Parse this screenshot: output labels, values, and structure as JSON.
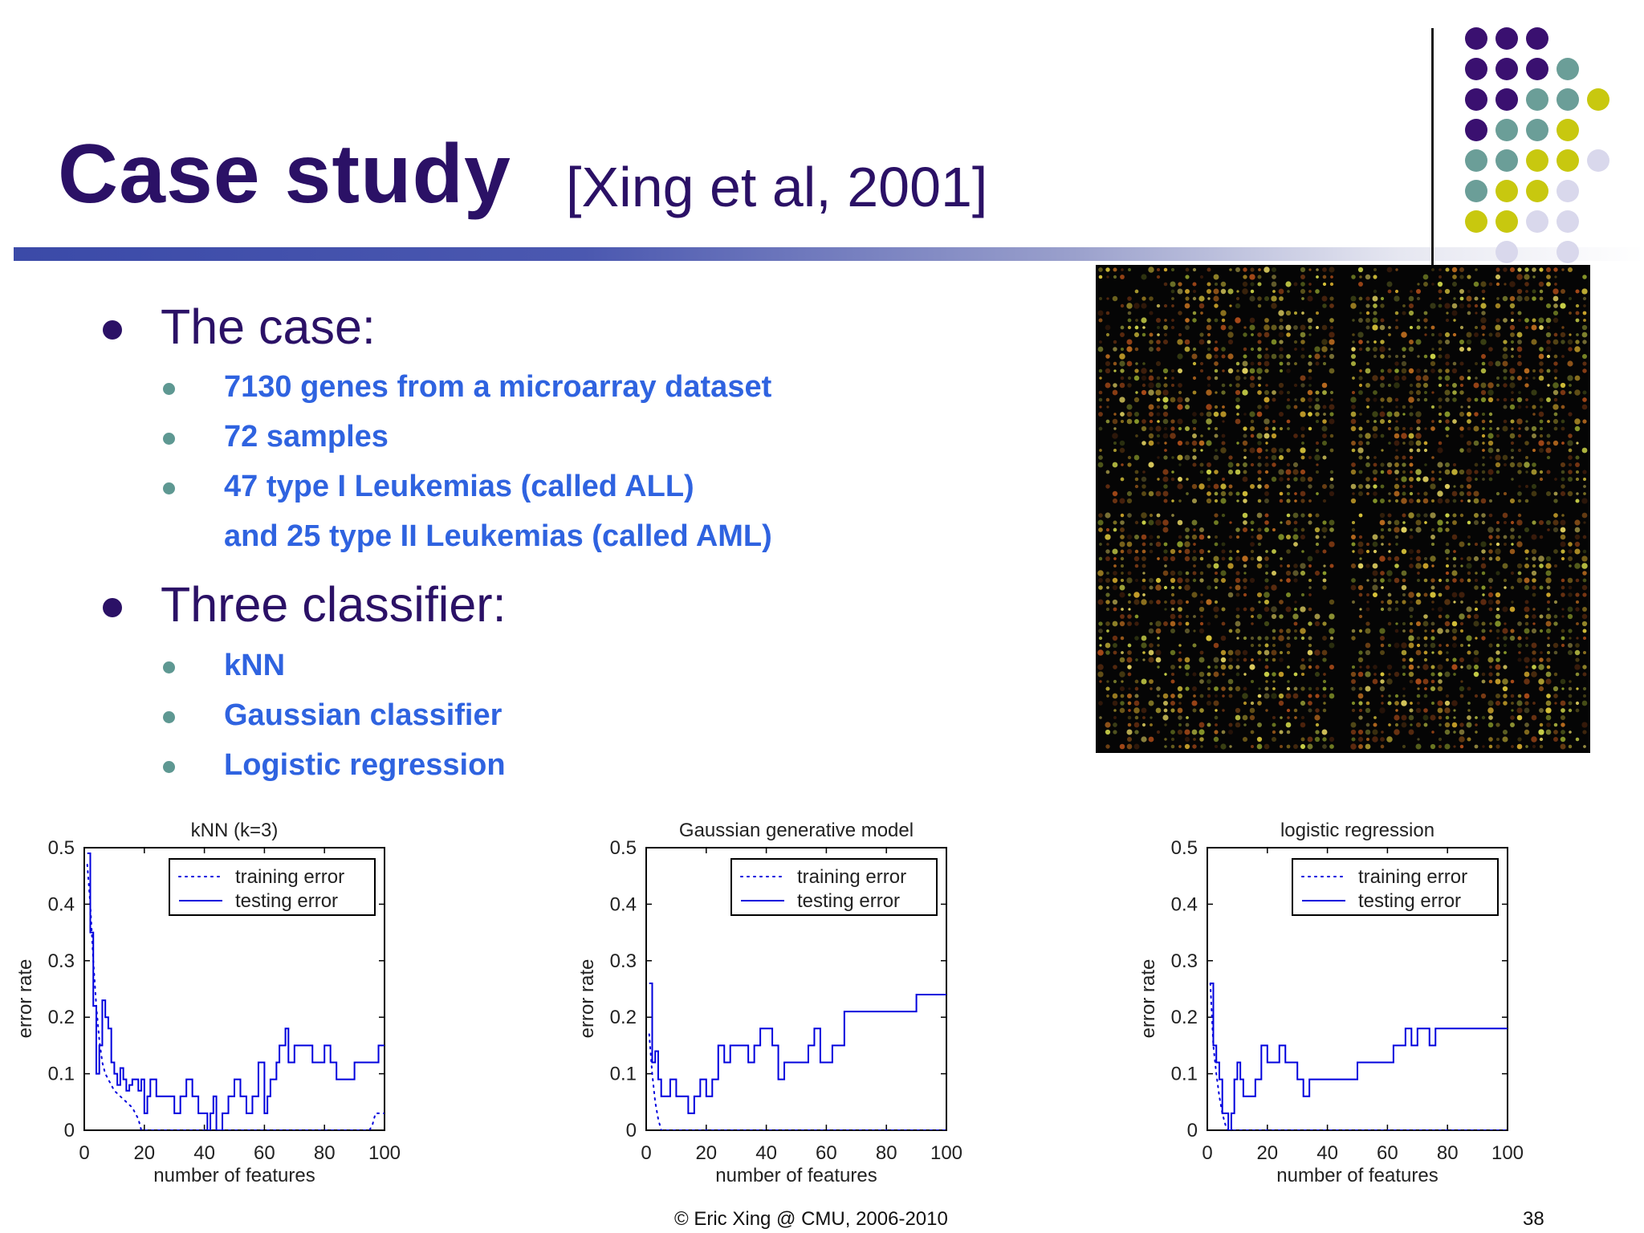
{
  "slide": {
    "title": "Case study",
    "citation": "[Xing et al, 2001]",
    "footer": "© Eric Xing @ CMU, 2006-2010",
    "page_number": "38",
    "colors": {
      "title": "#2b1166",
      "bullet_text": "#2f63e0",
      "purple": "#3a1070",
      "teal": "#6b9e98",
      "olive": "#c8c80f",
      "lavender": "#d9d8ec"
    }
  },
  "bullets": [
    {
      "text": "The case:",
      "children": [
        "7130 genes from a microarray dataset",
        "72 samples",
        "47 type I Leukemias (called ALL)",
        "and 25 type II Leukemias (called AML)"
      ]
    },
    {
      "text": "Three classifier:",
      "children": [
        "kNN",
        "Gaussian classifier",
        "Logistic regression"
      ]
    }
  ],
  "chart_data": [
    {
      "type": "line",
      "title": "kNN (k=3)",
      "xlabel": "number of features",
      "ylabel": "error rate",
      "xlim": [
        0,
        100
      ],
      "ylim": [
        0,
        0.5
      ],
      "xticks": [
        "0",
        "20",
        "40",
        "60",
        "80",
        "100"
      ],
      "yticks": [
        "0",
        "0.1",
        "0.2",
        "0.3",
        "0.4",
        "0.5"
      ],
      "legend_position": "top-right",
      "series": [
        {
          "name": "training error",
          "style": "dotted",
          "x": [
            1,
            2,
            3,
            4,
            5,
            6,
            7,
            8,
            9,
            10,
            12,
            14,
            16,
            18,
            19,
            20,
            30,
            40,
            50,
            60,
            70,
            80,
            90,
            95,
            96,
            97,
            100
          ],
          "y": [
            0.47,
            0.4,
            0.3,
            0.22,
            0.16,
            0.12,
            0.1,
            0.09,
            0.08,
            0.07,
            0.06,
            0.05,
            0.04,
            0.02,
            0.0,
            0.0,
            0.0,
            0.0,
            0.0,
            0.0,
            0.0,
            0.0,
            0.0,
            0.0,
            0.01,
            0.03,
            0.03
          ]
        },
        {
          "name": "testing error",
          "style": "solid",
          "x": [
            1,
            2,
            3,
            4,
            5,
            6,
            7,
            8,
            9,
            10,
            11,
            12,
            13,
            14,
            15,
            16,
            17,
            18,
            19,
            20,
            21,
            22,
            24,
            26,
            28,
            30,
            32,
            34,
            36,
            38,
            40,
            41,
            42,
            43,
            44,
            46,
            48,
            50,
            52,
            54,
            56,
            58,
            60,
            61,
            62,
            64,
            65,
            66,
            67,
            68,
            70,
            72,
            74,
            76,
            78,
            80,
            82,
            84,
            86,
            88,
            90,
            92,
            94,
            96,
            98,
            100
          ],
          "y": [
            0.49,
            0.35,
            0.22,
            0.1,
            0.15,
            0.23,
            0.2,
            0.18,
            0.12,
            0.1,
            0.08,
            0.11,
            0.09,
            0.07,
            0.08,
            0.09,
            0.09,
            0.07,
            0.09,
            0.03,
            0.06,
            0.09,
            0.06,
            0.06,
            0.06,
            0.03,
            0.06,
            0.09,
            0.06,
            0.03,
            0.03,
            0.0,
            0.03,
            0.06,
            0.0,
            0.03,
            0.06,
            0.09,
            0.06,
            0.03,
            0.06,
            0.12,
            0.03,
            0.06,
            0.09,
            0.12,
            0.15,
            0.15,
            0.18,
            0.12,
            0.15,
            0.15,
            0.15,
            0.12,
            0.12,
            0.15,
            0.12,
            0.09,
            0.09,
            0.09,
            0.12,
            0.12,
            0.12,
            0.12,
            0.15,
            0.15
          ]
        }
      ]
    },
    {
      "type": "line",
      "title": "Gaussian generative model",
      "xlabel": "number of features",
      "ylabel": "error rate",
      "xlim": [
        0,
        100
      ],
      "ylim": [
        0,
        0.5
      ],
      "xticks": [
        "0",
        "20",
        "40",
        "60",
        "80",
        "100"
      ],
      "yticks": [
        "0",
        "0.1",
        "0.2",
        "0.3",
        "0.4",
        "0.5"
      ],
      "legend_position": "top-right",
      "series": [
        {
          "name": "training error",
          "style": "dotted",
          "x": [
            1,
            2,
            3,
            4,
            5,
            6,
            10,
            20,
            40,
            60,
            80,
            100
          ],
          "y": [
            0.17,
            0.1,
            0.05,
            0.02,
            0.0,
            0.0,
            0.0,
            0.0,
            0.0,
            0.0,
            0.0,
            0.0
          ]
        },
        {
          "name": "testing error",
          "style": "solid",
          "x": [
            1,
            2,
            3,
            4,
            5,
            6,
            8,
            10,
            12,
            14,
            16,
            18,
            20,
            22,
            24,
            26,
            28,
            30,
            32,
            34,
            36,
            38,
            40,
            42,
            44,
            46,
            48,
            50,
            52,
            54,
            56,
            58,
            60,
            62,
            66,
            70,
            80,
            90,
            100
          ],
          "y": [
            0.26,
            0.12,
            0.14,
            0.09,
            0.06,
            0.06,
            0.09,
            0.06,
            0.06,
            0.03,
            0.06,
            0.09,
            0.06,
            0.09,
            0.15,
            0.12,
            0.15,
            0.15,
            0.15,
            0.12,
            0.15,
            0.18,
            0.18,
            0.15,
            0.09,
            0.12,
            0.12,
            0.12,
            0.12,
            0.15,
            0.18,
            0.12,
            0.12,
            0.15,
            0.21,
            0.21,
            0.21,
            0.24,
            0.24
          ]
        }
      ]
    },
    {
      "type": "line",
      "title": "logistic regression",
      "xlabel": "number of features",
      "ylabel": "error rate",
      "xlim": [
        0,
        100
      ],
      "ylim": [
        0,
        0.5
      ],
      "xticks": [
        "0",
        "20",
        "40",
        "60",
        "80",
        "100"
      ],
      "yticks": [
        "0",
        "0.1",
        "0.2",
        "0.3",
        "0.4",
        "0.5"
      ],
      "legend_position": "top-right",
      "series": [
        {
          "name": "training error",
          "style": "dotted",
          "x": [
            1,
            2,
            3,
            4,
            5,
            6,
            7,
            8,
            20,
            40,
            60,
            80,
            100
          ],
          "y": [
            0.26,
            0.15,
            0.1,
            0.06,
            0.03,
            0.01,
            0.0,
            0.0,
            0.0,
            0.0,
            0.0,
            0.0,
            0.0
          ]
        },
        {
          "name": "testing error",
          "style": "solid",
          "x": [
            1,
            2,
            3,
            4,
            5,
            6,
            7,
            8,
            9,
            10,
            11,
            12,
            14,
            16,
            18,
            20,
            22,
            24,
            26,
            28,
            30,
            32,
            34,
            36,
            40,
            45,
            50,
            55,
            60,
            62,
            64,
            66,
            68,
            70,
            72,
            74,
            76,
            78,
            80,
            84,
            90,
            100
          ],
          "y": [
            0.26,
            0.15,
            0.12,
            0.09,
            0.03,
            0.03,
            0.0,
            0.03,
            0.09,
            0.12,
            0.09,
            0.06,
            0.06,
            0.09,
            0.15,
            0.12,
            0.12,
            0.15,
            0.12,
            0.12,
            0.09,
            0.06,
            0.09,
            0.09,
            0.09,
            0.09,
            0.12,
            0.12,
            0.12,
            0.15,
            0.15,
            0.18,
            0.15,
            0.18,
            0.18,
            0.15,
            0.18,
            0.18,
            0.18,
            0.18,
            0.18,
            0.18
          ]
        }
      ]
    }
  ]
}
